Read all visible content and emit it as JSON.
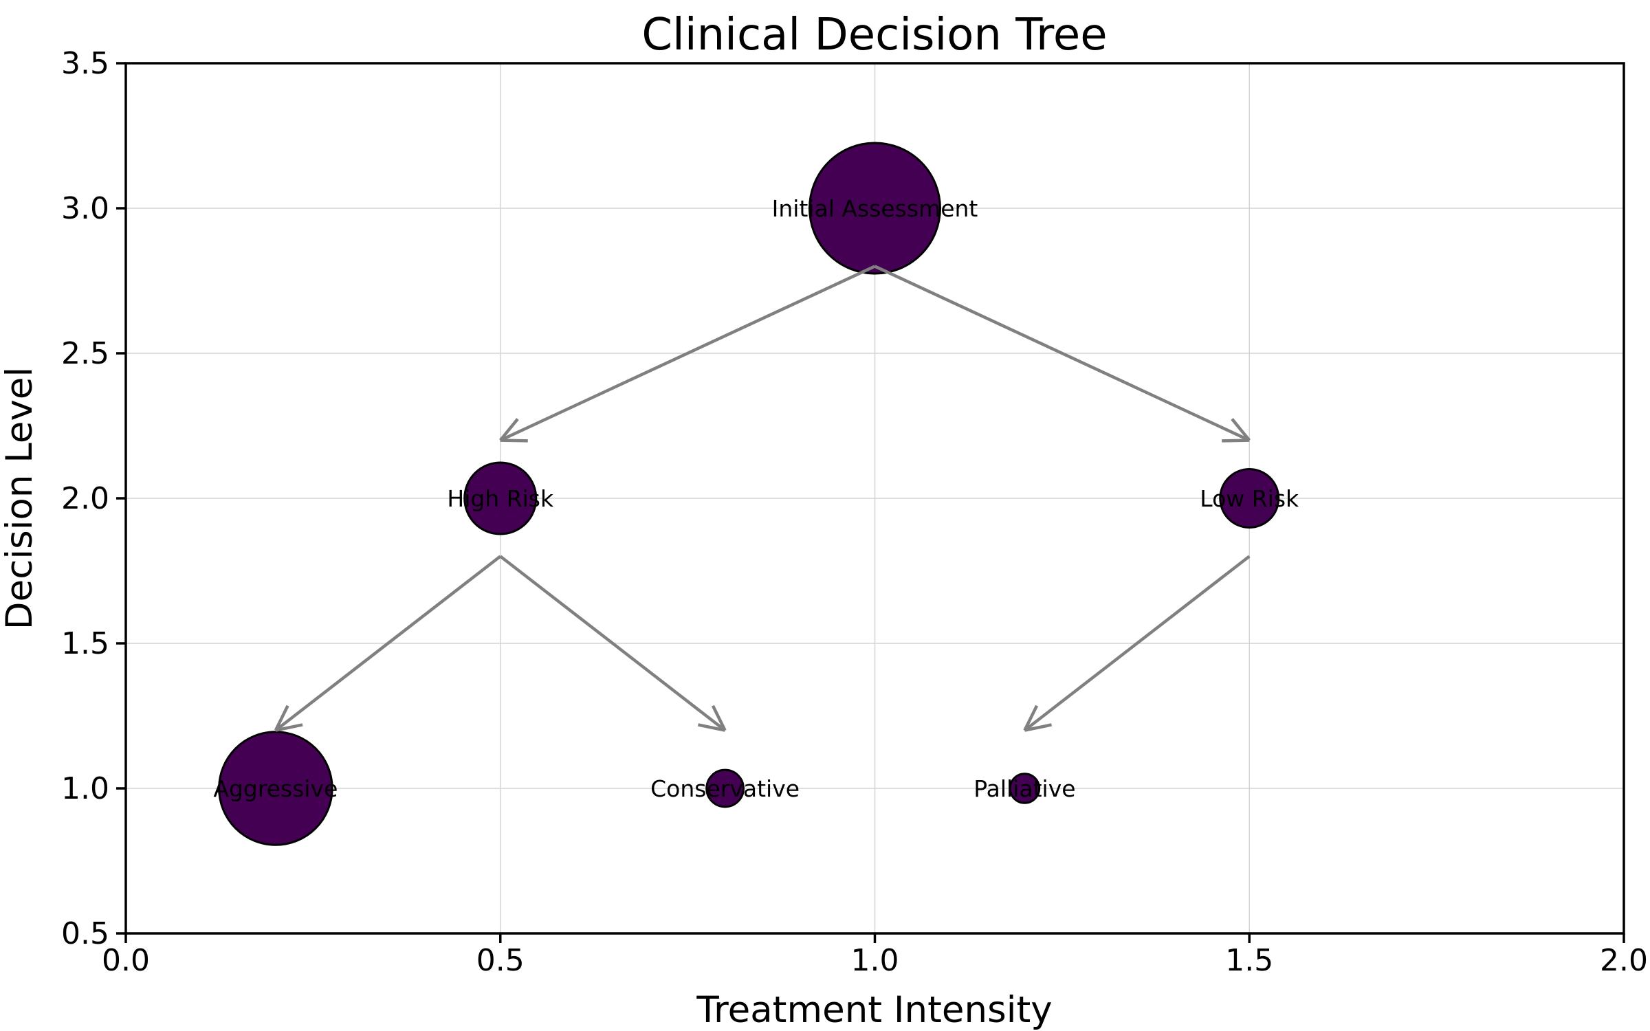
{
  "chart_data": {
    "type": "scatter",
    "title": "Clinical Decision Tree",
    "xlabel": "Treatment Intensity",
    "ylabel": "Decision Level",
    "xlim": [
      0.0,
      2.0
    ],
    "ylim": [
      0.5,
      3.5
    ],
    "xticks": [
      "0.0",
      "0.5",
      "1.0",
      "1.5",
      "2.0"
    ],
    "yticks": [
      "0.5",
      "1.0",
      "1.5",
      "2.0",
      "2.5",
      "3.0",
      "3.5"
    ],
    "grid": true,
    "legend": "none",
    "nodes": [
      {
        "label": "Initial Assessment",
        "x": 1.0,
        "y": 3.0,
        "size": 2000
      },
      {
        "label": "High Risk",
        "x": 0.5,
        "y": 2.0,
        "size": 600
      },
      {
        "label": "Low Risk",
        "x": 1.5,
        "y": 2.0,
        "size": 400
      },
      {
        "label": "Aggressive",
        "x": 0.2,
        "y": 1.0,
        "size": 1500
      },
      {
        "label": "Conservative",
        "x": 0.8,
        "y": 1.0,
        "size": 160
      },
      {
        "label": "Palliative",
        "x": 1.2,
        "y": 1.0,
        "size": 100
      }
    ],
    "edges": [
      {
        "from": "Initial Assessment",
        "to": "High Risk",
        "start": [
          1.0,
          2.8
        ],
        "end": [
          0.5,
          2.2
        ]
      },
      {
        "from": "Initial Assessment",
        "to": "Low Risk",
        "start": [
          1.0,
          2.8
        ],
        "end": [
          1.5,
          2.2
        ]
      },
      {
        "from": "High Risk",
        "to": "Aggressive",
        "start": [
          0.5,
          1.8
        ],
        "end": [
          0.2,
          1.2
        ]
      },
      {
        "from": "High Risk",
        "to": "Conservative",
        "start": [
          0.5,
          1.8
        ],
        "end": [
          0.8,
          1.2
        ]
      },
      {
        "from": "Low Risk",
        "to": "Palliative",
        "start": [
          1.5,
          1.8
        ],
        "end": [
          1.2,
          1.2
        ]
      }
    ],
    "colors": {
      "node_fill": "#440154",
      "node_edge": "#000000",
      "arrow": "#808080",
      "grid": "#d4d4d4",
      "text": "#000000",
      "background": "#ffffff"
    }
  }
}
